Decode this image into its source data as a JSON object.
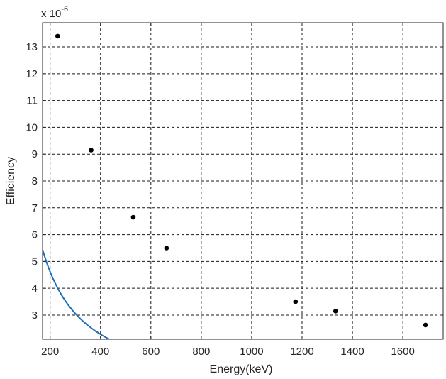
{
  "chart_data": {
    "type": "scatter",
    "title": "",
    "xlabel": "Energy(keV)",
    "ylabel": "Efficiency",
    "y_scale_prefix": "x 10",
    "y_scale_exponent": "-6",
    "xlim": [
      170,
      1760
    ],
    "ylim": [
      2.1,
      13.9
    ],
    "x_ticks": [
      200,
      400,
      600,
      800,
      1000,
      1200,
      1400,
      1600
    ],
    "y_ticks": [
      3,
      4,
      5,
      6,
      7,
      8,
      9,
      10,
      11,
      12,
      13
    ],
    "grid": true,
    "grid_style": "dashed",
    "series": [
      {
        "kind": "points",
        "color": "#000000",
        "x": [
          230,
          363,
          530,
          662,
          1174,
          1333,
          1690
        ],
        "y": [
          13.4,
          9.15,
          6.65,
          5.5,
          3.5,
          3.15,
          2.63
        ]
      },
      {
        "kind": "fit-curve",
        "color": "#1f6fb5",
        "model": "power",
        "coefficient": 1000,
        "exponent": -1.015
      }
    ]
  }
}
